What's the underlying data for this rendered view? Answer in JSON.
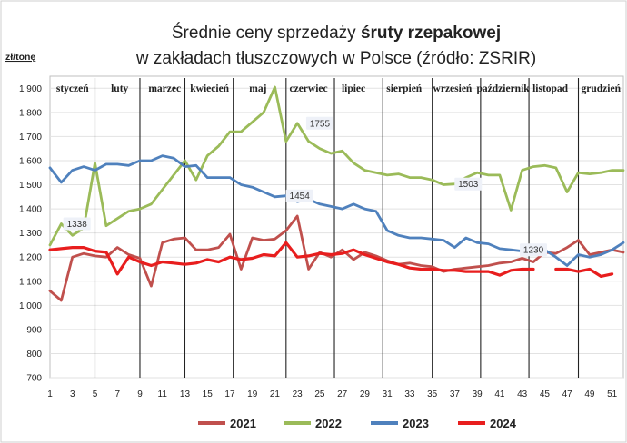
{
  "chart_data": {
    "type": "line",
    "title_line1_prefix": "Średnie ceny  sprzedaży ",
    "title_line1_bold": "śruty rzepakowej",
    "title_line2": "w zakładach tłuszczowych w Polsce  (źródło: ZSRIR)",
    "ylabel": "zł/tonę",
    "ylim": [
      700,
      1950
    ],
    "yticks": [
      "700",
      "800",
      "900",
      "1 000",
      "1 100",
      "1 200",
      "1 300",
      "1 400",
      "1 500",
      "1 600",
      "1 700",
      "1 800",
      "1 900"
    ],
    "yticks_values": [
      700,
      800,
      900,
      1000,
      1100,
      1200,
      1300,
      1400,
      1500,
      1600,
      1700,
      1800,
      1900
    ],
    "xlim": [
      1,
      52
    ],
    "xticks": [
      1,
      3,
      5,
      7,
      9,
      11,
      13,
      15,
      17,
      19,
      21,
      23,
      25,
      27,
      29,
      31,
      33,
      35,
      37,
      39,
      41,
      43,
      45,
      47,
      49,
      51
    ],
    "months": [
      "styczeń",
      "luty",
      "marzec",
      "kwiecień",
      "maj",
      "czerwiec",
      "lipiec",
      "sierpień",
      "wrzesień",
      "październik",
      "listopad",
      "grudzień"
    ],
    "month_label_x": [
      3,
      7.2,
      11.2,
      15.2,
      19.5,
      24,
      28,
      32.5,
      36.8,
      41.3,
      45.5,
      50
    ],
    "month_dividers": [
      5,
      9,
      13,
      17.3,
      22,
      26.3,
      30.6,
      35,
      39.3,
      43.6,
      48
    ],
    "series": [
      {
        "name": "2021",
        "color": "#c0504d",
        "x": [
          1,
          2,
          3,
          4,
          5,
          6,
          7,
          8,
          9,
          10,
          11,
          12,
          13,
          14,
          15,
          16,
          17,
          18,
          19,
          20,
          21,
          22,
          23,
          24,
          25,
          26,
          27,
          28,
          29,
          30,
          31,
          32,
          33,
          34,
          35,
          36,
          37,
          38,
          39,
          40,
          41,
          42,
          43,
          44,
          45,
          46,
          47,
          48,
          49,
          50,
          51,
          52
        ],
        "y": [
          1060,
          1020,
          1200,
          1215,
          1205,
          1200,
          1240,
          1210,
          1195,
          1080,
          1260,
          1275,
          1280,
          1230,
          1230,
          1240,
          1295,
          1150,
          1280,
          1270,
          1275,
          1310,
          1370,
          1150,
          1220,
          1200,
          1230,
          1190,
          1220,
          1205,
          1185,
          1170,
          1175,
          1165,
          1160,
          1140,
          1150,
          1155,
          1160,
          1165,
          1175,
          1180,
          1195,
          1180,
          1220,
          1215,
          1240,
          1270,
          1210,
          1220,
          1230,
          1220
        ]
      },
      {
        "name": "2022",
        "color": "#9bbb59",
        "x": [
          1,
          2,
          3,
          4,
          5,
          6,
          7,
          8,
          9,
          10,
          11,
          12,
          13,
          14,
          15,
          16,
          17,
          18,
          19,
          20,
          21,
          22,
          23,
          24,
          25,
          26,
          27,
          28,
          29,
          30,
          31,
          32,
          33,
          34,
          35,
          36,
          37,
          38,
          39,
          40,
          41,
          42,
          43,
          44,
          45,
          46,
          47,
          48,
          49,
          50,
          51,
          52
        ],
        "y": [
          1250,
          1338,
          1290,
          1320,
          1590,
          1330,
          1360,
          1390,
          1400,
          1420,
          1480,
          1540,
          1600,
          1520,
          1620,
          1660,
          1720,
          1720,
          1760,
          1800,
          1905,
          1680,
          1755,
          1680,
          1650,
          1630,
          1640,
          1590,
          1560,
          1550,
          1540,
          1545,
          1530,
          1530,
          1520,
          1500,
          1503,
          1530,
          1550,
          1540,
          1540,
          1395,
          1560,
          1575,
          1580,
          1570,
          1470,
          1550,
          1545,
          1550,
          1560,
          1560
        ]
      },
      {
        "name": "2023",
        "color": "#4f81bd",
        "x": [
          1,
          2,
          3,
          4,
          5,
          6,
          7,
          8,
          9,
          10,
          11,
          12,
          13,
          14,
          15,
          16,
          17,
          18,
          19,
          20,
          21,
          22,
          23,
          24,
          25,
          26,
          27,
          28,
          29,
          30,
          31,
          32,
          33,
          34,
          35,
          36,
          37,
          38,
          39,
          40,
          41,
          42,
          43,
          44,
          45,
          46,
          47,
          48,
          49,
          50,
          51,
          52
        ],
        "y": [
          1570,
          1510,
          1560,
          1575,
          1560,
          1585,
          1585,
          1580,
          1600,
          1600,
          1620,
          1610,
          1575,
          1580,
          1530,
          1530,
          1530,
          1500,
          1490,
          1470,
          1450,
          1454,
          1430,
          1440,
          1420,
          1410,
          1400,
          1420,
          1400,
          1390,
          1310,
          1290,
          1280,
          1280,
          1275,
          1270,
          1240,
          1280,
          1260,
          1255,
          1235,
          1230,
          1225,
          1230,
          1230,
          1200,
          1165,
          1210,
          1200,
          1210,
          1230,
          1260
        ]
      },
      {
        "name": "2024",
        "color": "#e81e1e",
        "x": [
          1,
          2,
          3,
          4,
          5,
          6,
          7,
          8,
          9,
          10,
          11,
          12,
          13,
          14,
          15,
          16,
          17,
          18,
          19,
          20,
          21,
          22,
          23,
          24,
          25,
          26,
          27,
          28,
          29,
          30,
          31,
          32,
          33,
          34,
          35,
          36,
          37,
          38,
          39,
          40,
          41,
          42,
          43,
          44,
          null,
          46,
          47,
          48,
          49,
          50,
          51
        ],
        "y": [
          1230,
          1235,
          1240,
          1240,
          1225,
          1220,
          1130,
          1200,
          1180,
          1165,
          1180,
          1175,
          1170,
          1175,
          1190,
          1180,
          1200,
          1190,
          1195,
          1210,
          1205,
          1260,
          1200,
          1205,
          1215,
          1210,
          1215,
          1230,
          1210,
          1195,
          1180,
          1170,
          1155,
          1150,
          1150,
          1145,
          1145,
          1140,
          1140,
          1140,
          1125,
          1145,
          1150,
          1150,
          null,
          1150,
          1150,
          1140,
          1150,
          1120,
          1130
        ]
      }
    ],
    "annotations": [
      {
        "text": "1338",
        "x": 3.4,
        "y": 1338
      },
      {
        "text": "1755",
        "x": 25,
        "y": 1755
      },
      {
        "text": "1454",
        "x": 23.2,
        "y": 1454
      },
      {
        "text": "1503",
        "x": 38.2,
        "y": 1503
      },
      {
        "text": "1230",
        "x": 44,
        "y": 1230
      }
    ],
    "legend_position": "bottom"
  }
}
